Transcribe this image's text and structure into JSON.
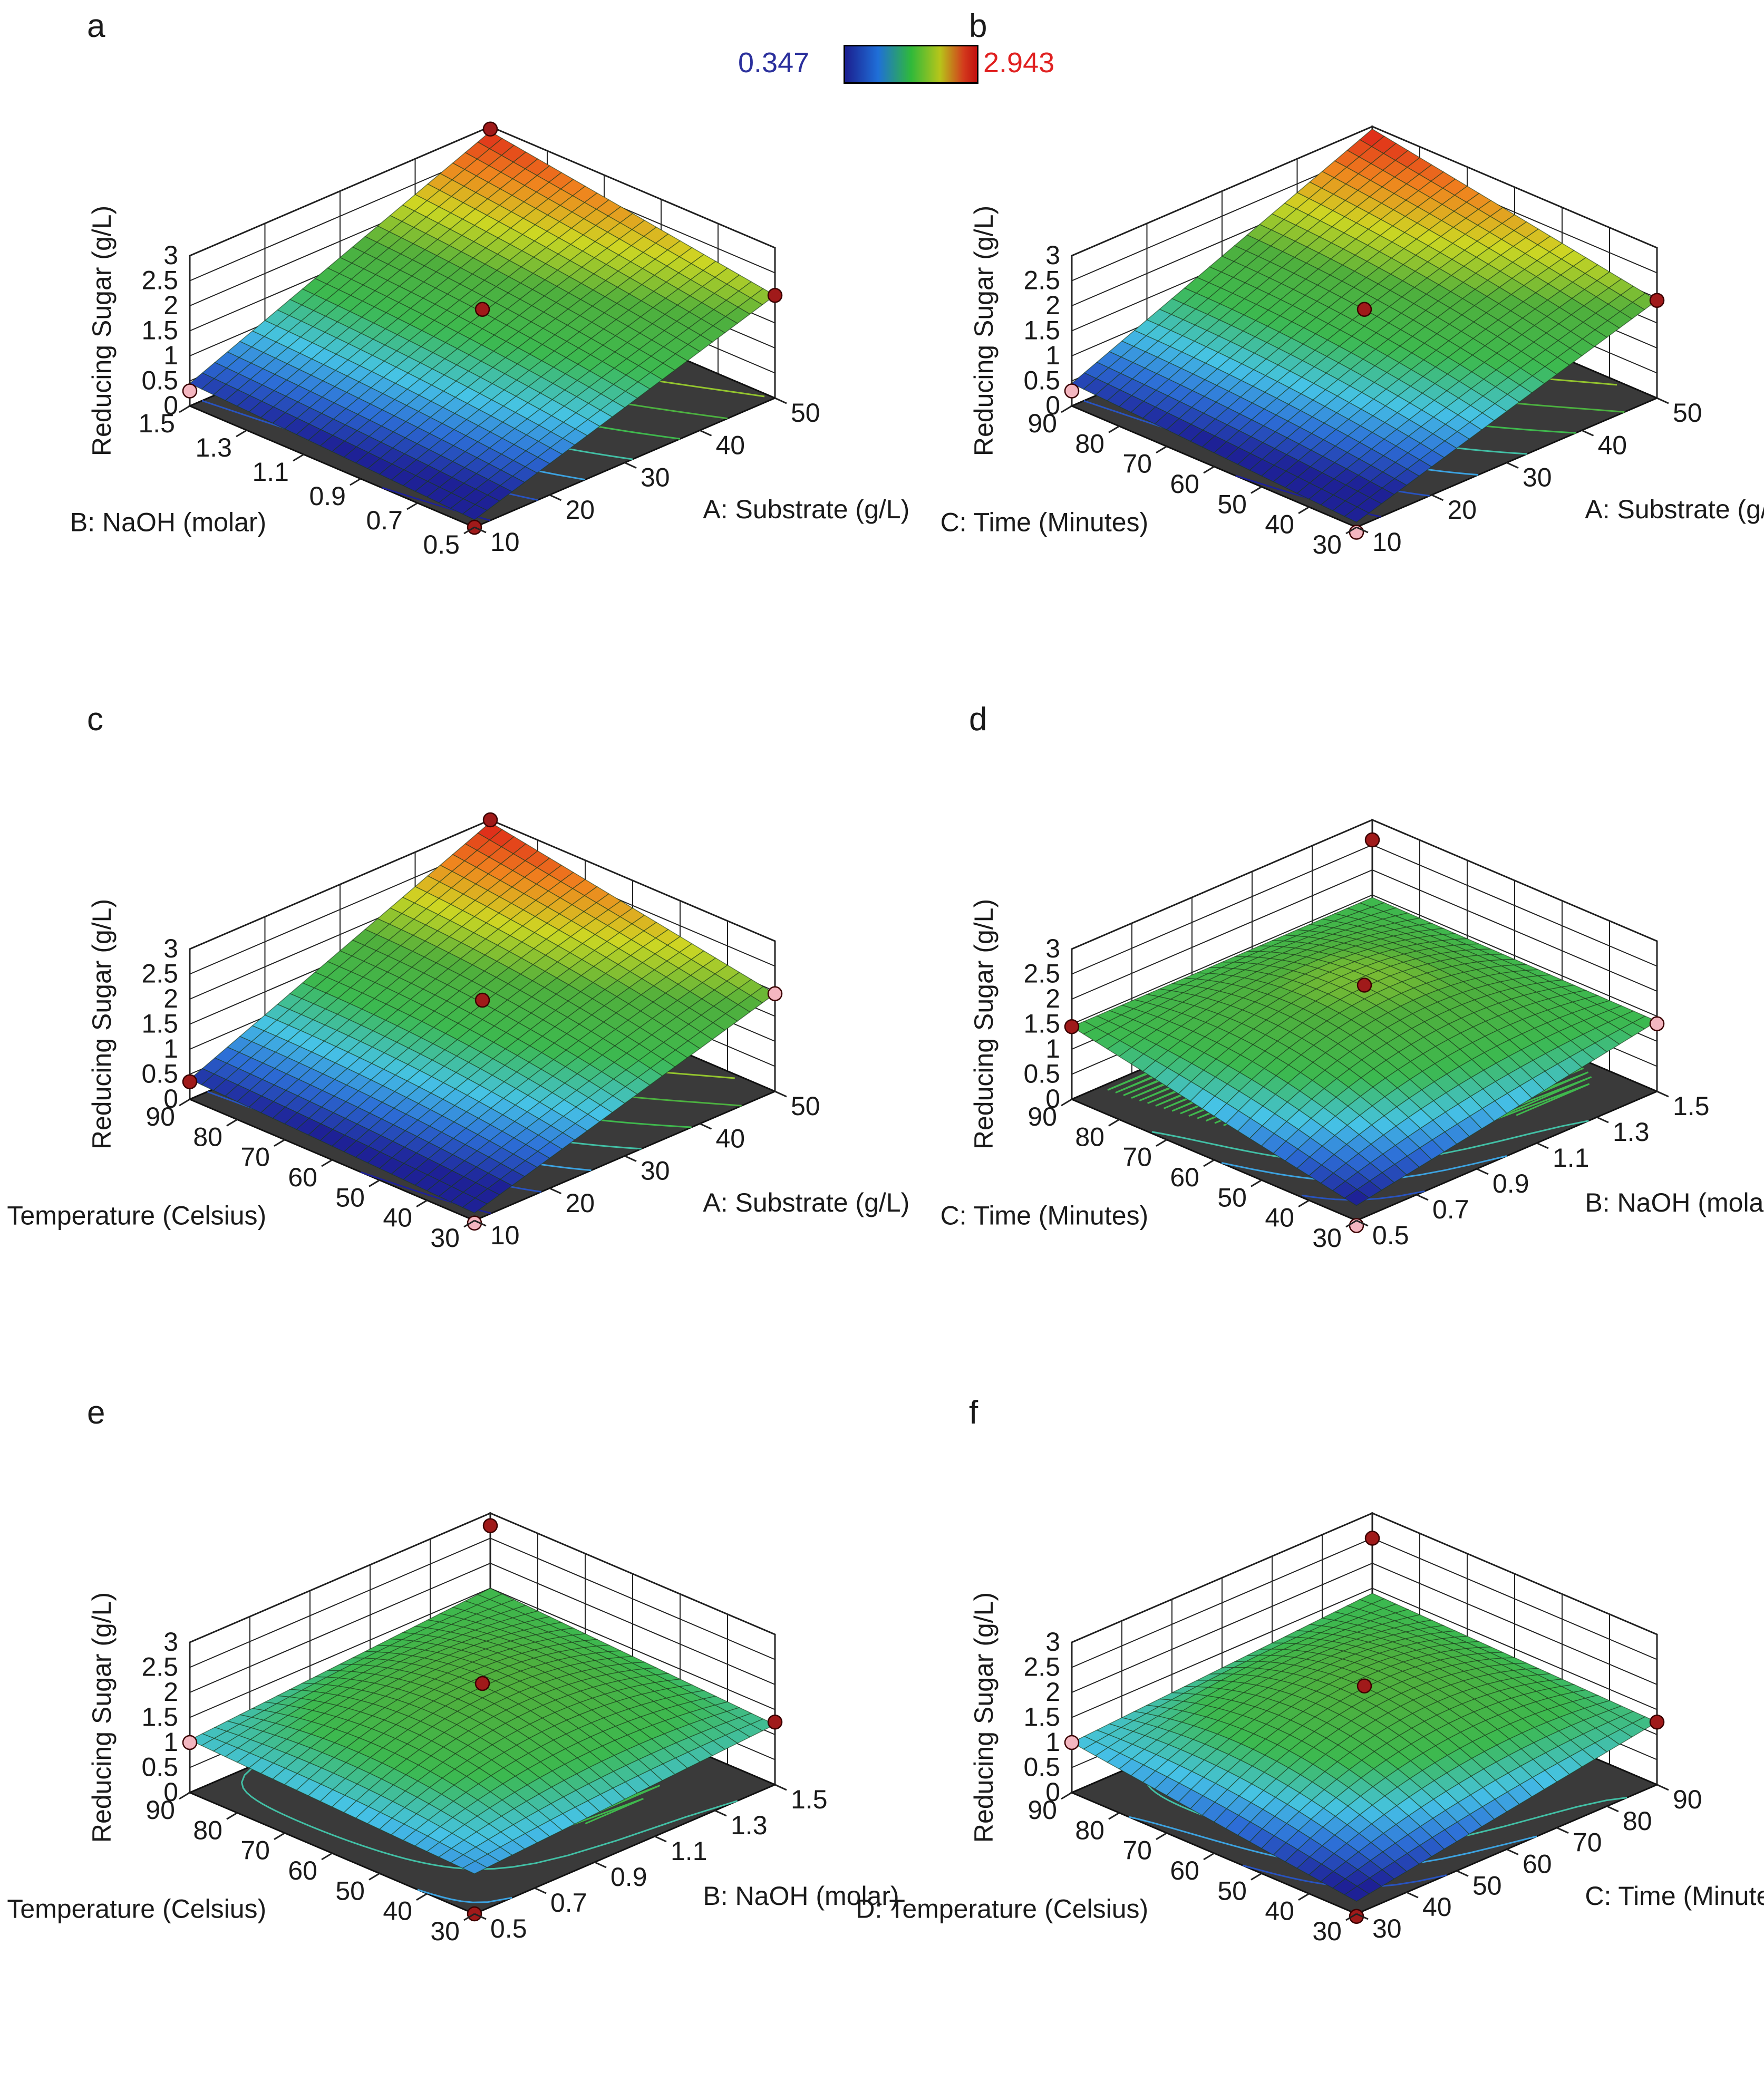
{
  "colorbar": {
    "min_label": "0.347",
    "max_label": "2.943",
    "min": 0.347,
    "max": 2.943
  },
  "chart_data": [
    {
      "type": "surface3d",
      "panel": "a",
      "zlabel": "Reducing Sugar (g/L)",
      "z_ticks": [
        "0",
        "0.5",
        "1",
        "1.5",
        "2",
        "2.5",
        "3"
      ],
      "zlim": [
        0,
        3
      ],
      "x_label": "A: Substrate (g/L)",
      "x_ticks": [
        "10",
        "20",
        "30",
        "40",
        "50"
      ],
      "x_range": [
        10,
        50
      ],
      "y_label": "B: NaOH (molar)",
      "y_ticks": [
        "0.5",
        "0.7",
        "0.9",
        "1.1",
        "1.3",
        "1.5"
      ],
      "y_range": [
        0.5,
        1.5
      ],
      "corners": {
        "left": 0.45,
        "front": 0.15,
        "right": 2.05,
        "back": 2.9
      },
      "curvature": 0.15,
      "points": [
        {
          "u": 0,
          "v": 1,
          "z": 0.3,
          "color": "#f4b6c0"
        },
        {
          "u": 0,
          "v": 0,
          "z": 0.0,
          "color": "#a01a1a"
        },
        {
          "u": 1,
          "v": 0,
          "z": 2.05,
          "color": "#a01a1a"
        },
        {
          "u": 1,
          "v": 1,
          "z": 2.95,
          "color": "#a01a1a"
        },
        {
          "u": 0.5,
          "v": 0.5,
          "z": 1.85,
          "color": "#a01a1a"
        }
      ]
    },
    {
      "type": "surface3d",
      "panel": "b",
      "zlabel": "Reducing Sugar (g/L)",
      "z_ticks": [
        "0",
        "0.5",
        "1",
        "1.5",
        "2",
        "2.5",
        "3"
      ],
      "zlim": [
        0,
        3
      ],
      "x_label": "A: Substrate (g/L)",
      "x_ticks": [
        "10",
        "20",
        "30",
        "40",
        "50"
      ],
      "x_range": [
        10,
        50
      ],
      "y_label": "C: Time (Minutes)",
      "y_ticks": [
        "30",
        "40",
        "50",
        "60",
        "70",
        "80",
        "90"
      ],
      "y_range": [
        30,
        90
      ],
      "corners": {
        "left": 0.45,
        "front": 0.1,
        "right": 1.95,
        "back": 2.95
      },
      "curvature": 0.3,
      "points": [
        {
          "u": 0,
          "v": 1,
          "z": 0.3,
          "color": "#f4b6c0"
        },
        {
          "u": 0,
          "v": 0,
          "z": -0.1,
          "color": "#f4b6c0"
        },
        {
          "u": 1,
          "v": 0,
          "z": 1.95,
          "color": "#a01a1a"
        },
        {
          "u": 0.5,
          "v": 0.5,
          "z": 1.85,
          "color": "#a01a1a"
        }
      ]
    },
    {
      "type": "surface3d",
      "panel": "c",
      "zlabel": "Reducing Sugar (g/L)",
      "z_ticks": [
        "0",
        "0.5",
        "1",
        "1.5",
        "2",
        "2.5",
        "3"
      ],
      "zlim": [
        0,
        3
      ],
      "x_label": "A: Substrate (g/L)",
      "x_ticks": [
        "10",
        "20",
        "30",
        "40",
        "50"
      ],
      "x_range": [
        10,
        50
      ],
      "y_label": "D: Temperature (Celsius)",
      "y_ticks": [
        "30",
        "40",
        "50",
        "60",
        "70",
        "80",
        "90"
      ],
      "y_range": [
        30,
        90
      ],
      "corners": {
        "left": 0.4,
        "front": 0.15,
        "right": 1.95,
        "back": 2.95
      },
      "curvature": 0.3,
      "points": [
        {
          "u": 0,
          "v": 1,
          "z": 0.35,
          "color": "#a01a1a"
        },
        {
          "u": 0,
          "v": 0,
          "z": -0.05,
          "color": "#f4b6c0"
        },
        {
          "u": 1,
          "v": 0,
          "z": 1.95,
          "color": "#f4b6c0"
        },
        {
          "u": 1,
          "v": 1,
          "z": 3.0,
          "color": "#a01a1a"
        },
        {
          "u": 0.5,
          "v": 0.5,
          "z": 1.9,
          "color": "#a01a1a"
        }
      ]
    },
    {
      "type": "surface3d",
      "panel": "d",
      "zlabel": "Reducing Sugar (g/L)",
      "z_ticks": [
        "0",
        "0.5",
        "1",
        "1.5",
        "2",
        "2.5",
        "3"
      ],
      "zlim": [
        0,
        3
      ],
      "x_label": "B: NaOH (molar)",
      "x_ticks": [
        "0.5",
        "0.7",
        "0.9",
        "1.1",
        "1.3",
        "1.5"
      ],
      "x_range": [
        0.5,
        1.5
      ],
      "y_label": "C: Time (Minutes)",
      "y_ticks": [
        "30",
        "40",
        "50",
        "60",
        "70",
        "80",
        "90"
      ],
      "y_range": [
        30,
        90
      ],
      "corners": {
        "left": 1.45,
        "front": 0.3,
        "right": 1.4,
        "back": 1.45
      },
      "curvature": 1.55,
      "points": [
        {
          "u": 0,
          "v": 1,
          "z": 1.45,
          "color": "#a01a1a"
        },
        {
          "u": 0,
          "v": 0,
          "z": -0.1,
          "color": "#f4b6c0"
        },
        {
          "u": 1,
          "v": 0,
          "z": 1.35,
          "color": "#f4b6c0"
        },
        {
          "u": 1,
          "v": 1,
          "z": 2.6,
          "color": "#a01a1a"
        },
        {
          "u": 0.5,
          "v": 0.5,
          "z": 2.2,
          "color": "#a01a1a"
        }
      ]
    },
    {
      "type": "surface3d",
      "panel": "e",
      "zlabel": "Reducing Sugar (g/L)",
      "z_ticks": [
        "0",
        "0.5",
        "1",
        "1.5",
        "2",
        "2.5",
        "3"
      ],
      "zlim": [
        0,
        3
      ],
      "x_label": "B: NaOH (molar)",
      "x_ticks": [
        "0.5",
        "0.7",
        "0.9",
        "1.1",
        "1.3",
        "1.5"
      ],
      "x_range": [
        0.5,
        1.5
      ],
      "y_label": "D: Temperature (Celsius)",
      "y_ticks": [
        "30",
        "40",
        "50",
        "60",
        "70",
        "80",
        "90"
      ],
      "y_range": [
        30,
        90
      ],
      "corners": {
        "left": 1.05,
        "front": 0.8,
        "right": 1.2,
        "back": 1.5
      },
      "curvature": 1.35,
      "points": [
        {
          "u": 0,
          "v": 1,
          "z": 1.0,
          "color": "#f4b6c0"
        },
        {
          "u": 0,
          "v": 0,
          "z": 0.0,
          "color": "#a01a1a"
        },
        {
          "u": 1,
          "v": 0,
          "z": 1.25,
          "color": "#a01a1a"
        },
        {
          "u": 1,
          "v": 1,
          "z": 2.75,
          "color": "#a01a1a"
        },
        {
          "u": 0.5,
          "v": 0.5,
          "z": 2.1,
          "color": "#a01a1a"
        }
      ]
    },
    {
      "type": "surface3d",
      "panel": "f",
      "zlabel": "Reducing Sugar (g/L)",
      "z_ticks": [
        "0",
        "0.5",
        "1",
        "1.5",
        "2",
        "2.5",
        "3"
      ],
      "zlim": [
        0,
        3
      ],
      "x_label": "C: Time (Minutes)",
      "x_ticks": [
        "30",
        "40",
        "50",
        "60",
        "70",
        "80",
        "90"
      ],
      "x_range": [
        30,
        90
      ],
      "y_label": "D: Temperature (Celsius)",
      "y_ticks": [
        "30",
        "40",
        "50",
        "60",
        "70",
        "80",
        "90"
      ],
      "y_range": [
        30,
        90
      ],
      "corners": {
        "left": 1.0,
        "front": 0.25,
        "right": 1.25,
        "back": 1.4
      },
      "curvature": 1.6,
      "points": [
        {
          "u": 0,
          "v": 1,
          "z": 1.0,
          "color": "#f4b6c0"
        },
        {
          "u": 0,
          "v": 0,
          "z": -0.05,
          "color": "#a01a1a"
        },
        {
          "u": 1,
          "v": 0,
          "z": 1.25,
          "color": "#a01a1a"
        },
        {
          "u": 1,
          "v": 1,
          "z": 2.5,
          "color": "#a01a1a"
        },
        {
          "u": 0.5,
          "v": 0.5,
          "z": 2.05,
          "color": "#a01a1a"
        }
      ]
    }
  ]
}
